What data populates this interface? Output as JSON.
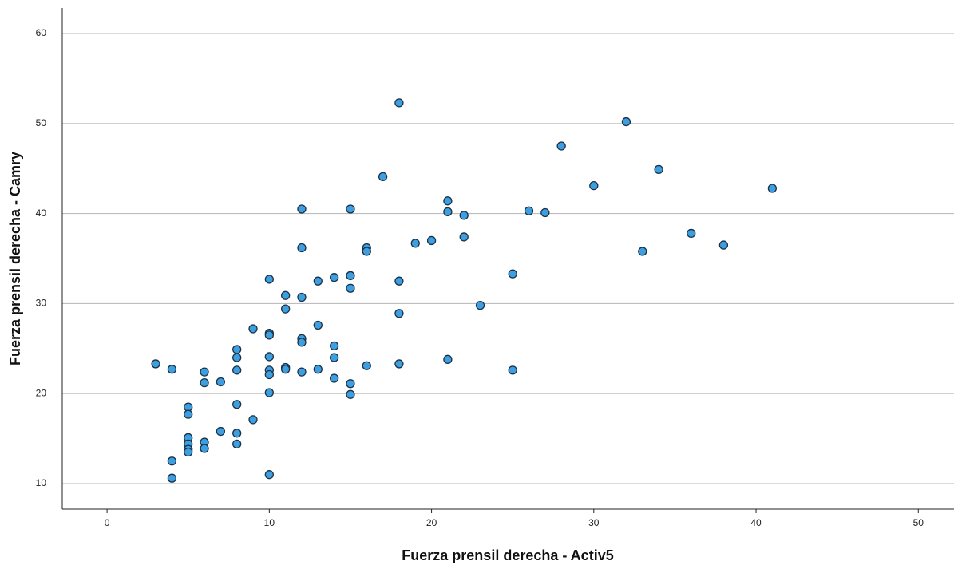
{
  "chart_data": {
    "type": "scatter",
    "x_label": "Fuerza prensil derecha - Activ5",
    "y_label": "Fuerza prensil derecha - Camry",
    "color": "#3d9fe0",
    "edge_color": "#1b3147",
    "grid": true,
    "xlim": [
      -2.76,
      52.2
    ],
    "ylim": [
      7.16,
      62.84
    ],
    "xticks": [
      0,
      10,
      20,
      30,
      40,
      50
    ],
    "yticks": [
      10,
      20,
      30,
      40,
      50,
      60
    ],
    "x": [
      3,
      4,
      4,
      4,
      5,
      5,
      5,
      5,
      5,
      5,
      6,
      6,
      6,
      6,
      7,
      7,
      8,
      8,
      8,
      8,
      8,
      8,
      9,
      9,
      10,
      10,
      10,
      10,
      10,
      10,
      10,
      10,
      11,
      11,
      11,
      11,
      12,
      12,
      12,
      12,
      12,
      12,
      13,
      13,
      13,
      14,
      14,
      14,
      14,
      15,
      15,
      15,
      15,
      15,
      16,
      16,
      16,
      17,
      18,
      18,
      18,
      18,
      19,
      20,
      21,
      21,
      21,
      22,
      22,
      23,
      25,
      25,
      26,
      27,
      28,
      30,
      32,
      33,
      34,
      36,
      38,
      41
    ],
    "y": [
      23.3,
      22.7,
      12.5,
      10.6,
      18.5,
      17.7,
      15.1,
      14.4,
      13.8,
      13.5,
      22.4,
      21.2,
      14.6,
      13.9,
      21.3,
      15.8,
      24.9,
      24.0,
      22.6,
      18.8,
      15.6,
      14.4,
      27.2,
      17.1,
      32.7,
      26.7,
      26.5,
      24.1,
      22.6,
      22.1,
      20.1,
      11.0,
      30.9,
      29.4,
      22.9,
      22.7,
      40.5,
      36.2,
      30.7,
      26.1,
      25.7,
      22.4,
      32.5,
      27.6,
      22.7,
      32.9,
      25.3,
      24.0,
      21.7,
      40.5,
      33.1,
      31.7,
      21.1,
      19.9,
      36.2,
      35.8,
      23.1,
      44.1,
      52.3,
      32.5,
      28.9,
      23.3,
      36.7,
      37.0,
      41.4,
      40.2,
      23.8,
      39.8,
      37.4,
      29.8,
      33.3,
      22.6,
      40.3,
      40.1,
      47.5,
      43.1,
      50.2,
      35.8,
      44.9,
      37.8,
      36.5,
      42.8
    ]
  }
}
